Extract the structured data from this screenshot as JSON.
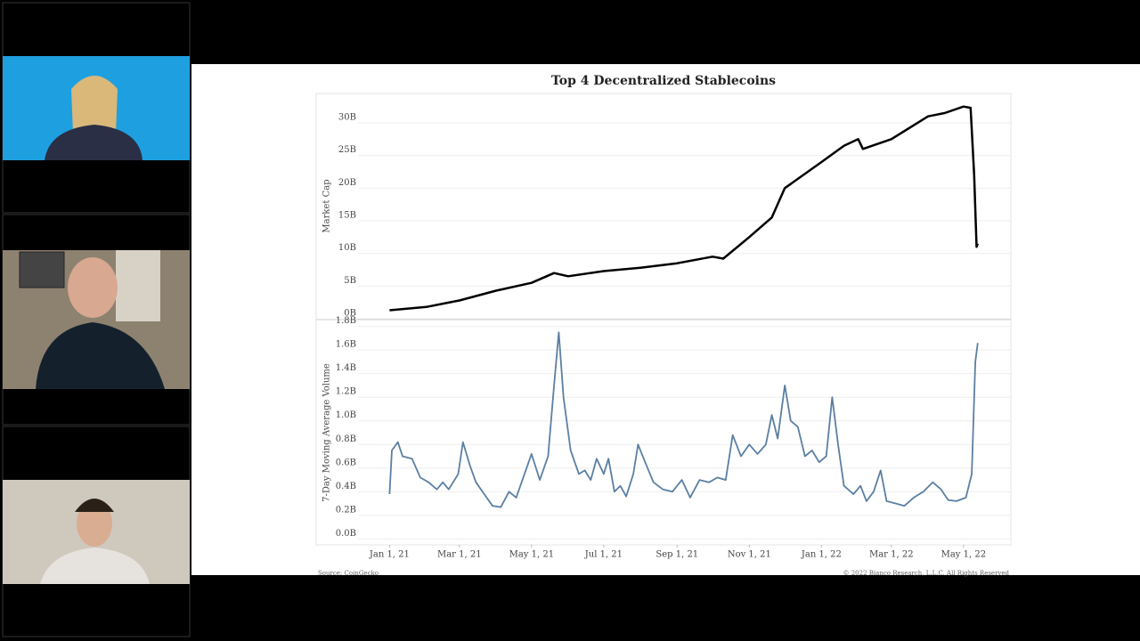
{
  "slide": {
    "title": "Top 4 Decentralized Stablecoins",
    "source": "Source: CoinGecko",
    "copyright": "© 2022 Bianco Research, L.L.C. All Rights Reserved"
  },
  "chart_data": [
    {
      "type": "line",
      "ylabel": "Market Cap",
      "xlim": [
        "2020-10-31",
        "2022-06-10"
      ],
      "ylim": [
        0,
        34.5
      ],
      "yticks": [
        {
          "value": 0,
          "label": "0B"
        },
        {
          "value": 5,
          "label": "5B"
        },
        {
          "value": 10,
          "label": "10B"
        },
        {
          "value": 15,
          "label": "15B"
        },
        {
          "value": 20,
          "label": "20B"
        },
        {
          "value": 25,
          "label": "25B"
        },
        {
          "value": 30,
          "label": "30B"
        }
      ],
      "grid": true,
      "x": [
        "2021-01-01",
        "2021-02-01",
        "2021-03-01",
        "2021-04-01",
        "2021-05-01",
        "2021-05-20",
        "2021-06-01",
        "2021-07-01",
        "2021-08-01",
        "2021-09-01",
        "2021-10-01",
        "2021-10-10",
        "2021-11-01",
        "2021-11-20",
        "2021-12-01",
        "2022-01-01",
        "2022-01-20",
        "2022-02-01",
        "2022-02-05",
        "2022-03-01",
        "2022-04-01",
        "2022-04-15",
        "2022-05-01",
        "2022-05-07",
        "2022-05-10",
        "2022-05-12",
        "2022-05-13"
      ],
      "series": [
        {
          "name": "Market Cap",
          "color": "#000000",
          "values": [
            1.3,
            1.8,
            2.8,
            4.3,
            5.5,
            7.0,
            6.5,
            7.3,
            7.8,
            8.5,
            9.5,
            9.2,
            12.5,
            15.5,
            20,
            24,
            26.5,
            27.5,
            26,
            27.5,
            31,
            31.5,
            32.5,
            32.3,
            22,
            11,
            11.5
          ]
        }
      ]
    },
    {
      "type": "line",
      "ylabel": "7-Day Moving Average Volume",
      "xlim": [
        "2020-10-31",
        "2022-06-10"
      ],
      "ylim": [
        -0.05,
        1.85
      ],
      "yticks": [
        {
          "value": 0,
          "label": "0.0B"
        },
        {
          "value": 0.2,
          "label": "0.2B"
        },
        {
          "value": 0.4,
          "label": "0.4B"
        },
        {
          "value": 0.6,
          "label": "0.6B"
        },
        {
          "value": 0.8,
          "label": "0.8B"
        },
        {
          "value": 1.0,
          "label": "1.0B"
        },
        {
          "value": 1.2,
          "label": "1.2B"
        },
        {
          "value": 1.4,
          "label": "1.4B"
        },
        {
          "value": 1.6,
          "label": "1.6B"
        },
        {
          "value": 1.8,
          "label": "1.8B"
        }
      ],
      "xticks": [
        {
          "value": "2021-01-01",
          "label": "Jan 1, 21"
        },
        {
          "value": "2021-03-01",
          "label": "Mar 1, 21"
        },
        {
          "value": "2021-05-01",
          "label": "May 1, 21"
        },
        {
          "value": "2021-07-01",
          "label": "Jul 1, 21"
        },
        {
          "value": "2021-09-01",
          "label": "Sep 1, 21"
        },
        {
          "value": "2021-11-01",
          "label": "Nov 1, 21"
        },
        {
          "value": "2022-01-01",
          "label": "Jan 1, 22"
        },
        {
          "value": "2022-03-01",
          "label": "Mar 1, 22"
        },
        {
          "value": "2022-05-01",
          "label": "May 1, 22"
        }
      ],
      "grid": true,
      "x": [
        "2021-01-01",
        "2021-01-03",
        "2021-01-08",
        "2021-01-12",
        "2021-01-20",
        "2021-01-27",
        "2021-02-03",
        "2021-02-10",
        "2021-02-15",
        "2021-02-20",
        "2021-02-28",
        "2021-03-04",
        "2021-03-10",
        "2021-03-15",
        "2021-03-22",
        "2021-03-29",
        "2021-04-05",
        "2021-04-12",
        "2021-04-18",
        "2021-04-25",
        "2021-05-01",
        "2021-05-08",
        "2021-05-15",
        "2021-05-20",
        "2021-05-24",
        "2021-05-28",
        "2021-06-03",
        "2021-06-10",
        "2021-06-15",
        "2021-06-20",
        "2021-06-25",
        "2021-07-01",
        "2021-07-05",
        "2021-07-10",
        "2021-07-15",
        "2021-07-20",
        "2021-07-26",
        "2021-07-30",
        "2021-08-05",
        "2021-08-12",
        "2021-08-20",
        "2021-08-28",
        "2021-09-05",
        "2021-09-12",
        "2021-09-20",
        "2021-09-28",
        "2021-10-05",
        "2021-10-12",
        "2021-10-18",
        "2021-10-25",
        "2021-11-01",
        "2021-11-08",
        "2021-11-15",
        "2021-11-20",
        "2021-11-25",
        "2021-12-01",
        "2021-12-06",
        "2021-12-12",
        "2021-12-18",
        "2021-12-24",
        "2021-12-30",
        "2022-01-05",
        "2022-01-10",
        "2022-01-15",
        "2022-01-20",
        "2022-01-28",
        "2022-02-03",
        "2022-02-08",
        "2022-02-14",
        "2022-02-20",
        "2022-02-25",
        "2022-03-05",
        "2022-03-12",
        "2022-03-20",
        "2022-03-28",
        "2022-04-05",
        "2022-04-12",
        "2022-04-18",
        "2022-04-25",
        "2022-05-03",
        "2022-05-08",
        "2022-05-11",
        "2022-05-13"
      ],
      "series": [
        {
          "name": "7-Day Moving Average Volume",
          "color": "#5b7fa3",
          "values": [
            0.38,
            0.75,
            0.82,
            0.7,
            0.68,
            0.52,
            0.48,
            0.42,
            0.48,
            0.42,
            0.55,
            0.82,
            0.62,
            0.48,
            0.38,
            0.28,
            0.27,
            0.4,
            0.35,
            0.55,
            0.72,
            0.5,
            0.7,
            1.3,
            1.75,
            1.2,
            0.75,
            0.55,
            0.58,
            0.5,
            0.68,
            0.55,
            0.68,
            0.4,
            0.45,
            0.36,
            0.55,
            0.8,
            0.65,
            0.48,
            0.42,
            0.4,
            0.5,
            0.35,
            0.5,
            0.48,
            0.52,
            0.5,
            0.88,
            0.7,
            0.8,
            0.72,
            0.8,
            1.05,
            0.85,
            1.3,
            1.0,
            0.95,
            0.7,
            0.75,
            0.65,
            0.7,
            1.2,
            0.8,
            0.45,
            0.38,
            0.45,
            0.32,
            0.4,
            0.58,
            0.32,
            0.3,
            0.28,
            0.35,
            0.4,
            0.48,
            0.42,
            0.33,
            0.32,
            0.35,
            0.55,
            1.5,
            1.66
          ]
        }
      ]
    }
  ]
}
